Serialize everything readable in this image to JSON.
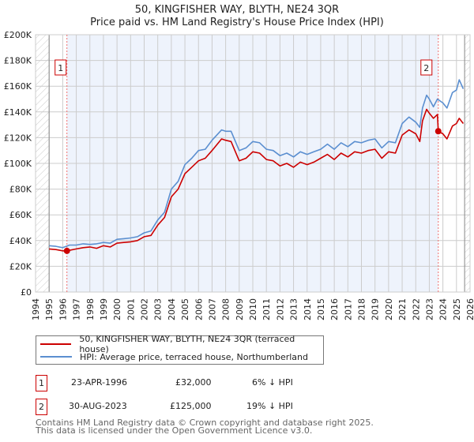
{
  "chart_data": {
    "type": "line",
    "title": "50, KINGFISHER WAY, BLYTH, NE24 3QR",
    "subtitle": "Price paid vs. HM Land Registry's House Price Index (HPI)",
    "xlabel": "",
    "ylabel": "",
    "xlim": [
      1994,
      2026
    ],
    "ylim": [
      0,
      200000
    ],
    "x_ticks": [
      "1994",
      "1995",
      "1996",
      "1997",
      "1998",
      "1999",
      "2000",
      "2001",
      "2002",
      "2003",
      "2004",
      "2005",
      "2006",
      "2007",
      "2008",
      "2009",
      "2010",
      "2011",
      "2012",
      "2013",
      "2014",
      "2015",
      "2016",
      "2017",
      "2018",
      "2019",
      "2020",
      "2021",
      "2022",
      "2023",
      "2024",
      "2025",
      "2026"
    ],
    "y_ticks": [
      {
        "v": 0,
        "label": "£0"
      },
      {
        "v": 20000,
        "label": "£20K"
      },
      {
        "v": 40000,
        "label": "£40K"
      },
      {
        "v": 60000,
        "label": "£60K"
      },
      {
        "v": 80000,
        "label": "£80K"
      },
      {
        "v": 100000,
        "label": "£100K"
      },
      {
        "v": 120000,
        "label": "£120K"
      },
      {
        "v": 140000,
        "label": "£140K"
      },
      {
        "v": 160000,
        "label": "£160K"
      },
      {
        "v": 180000,
        "label": "£180K"
      },
      {
        "v": 200000,
        "label": "£200K"
      }
    ],
    "grid": true,
    "data_range": [
      1995,
      2025.6
    ],
    "series": [
      {
        "name": "50, KINGFISHER WAY, BLYTH, NE24 3QR (terraced house)",
        "color": "#cc0000",
        "x": [
          1995,
          1995.5,
          1996,
          1996.3,
          1997,
          1997.5,
          1998,
          1998.5,
          1999,
          1999.5,
          2000,
          2000.5,
          2001,
          2001.5,
          2002,
          2002.5,
          2003,
          2003.5,
          2004,
          2004.5,
          2005,
          2005.5,
          2006,
          2006.5,
          2007,
          2007.7,
          2008,
          2008.4,
          2009,
          2009.5,
          2010,
          2010.5,
          2011,
          2011.5,
          2012,
          2012.5,
          2013,
          2013.5,
          2014,
          2014.5,
          2015,
          2015.5,
          2016,
          2016.5,
          2017,
          2017.5,
          2018,
          2018.5,
          2019,
          2019.5,
          2020,
          2020.5,
          2021,
          2021.5,
          2022,
          2022.3,
          2022.5,
          2022.8,
          2023,
          2023.3,
          2023.6,
          2023.66,
          2024,
          2024.3,
          2024.7,
          2025,
          2025.2,
          2025.5
        ],
        "y": [
          33500,
          33000,
          32000,
          32000,
          33500,
          34500,
          35000,
          34000,
          36000,
          35000,
          38000,
          38500,
          39000,
          40000,
          43000,
          44000,
          52000,
          58000,
          74000,
          80000,
          92000,
          97000,
          102000,
          104000,
          110000,
          119000,
          118000,
          117000,
          102000,
          104000,
          109000,
          108000,
          103000,
          102000,
          98000,
          100000,
          97000,
          101000,
          99000,
          101000,
          104000,
          107000,
          103000,
          108000,
          105000,
          109000,
          108000,
          110000,
          111000,
          104000,
          109000,
          108000,
          122000,
          126000,
          123000,
          117000,
          133000,
          142000,
          139000,
          135000,
          138000,
          125000,
          123000,
          119000,
          129000,
          131000,
          135000,
          131000
        ]
      },
      {
        "name": "HPI: Average price, terraced house, Northumberland",
        "color": "#5b8fd0",
        "x": [
          1995,
          1995.5,
          1996,
          1996.5,
          1997,
          1997.5,
          1998,
          1998.5,
          1999,
          1999.5,
          2000,
          2000.5,
          2001,
          2001.5,
          2002,
          2002.5,
          2003,
          2003.5,
          2004,
          2004.5,
          2005,
          2005.5,
          2006,
          2006.5,
          2007,
          2007.7,
          2008,
          2008.4,
          2009,
          2009.5,
          2010,
          2010.5,
          2011,
          2011.5,
          2012,
          2012.5,
          2013,
          2013.5,
          2014,
          2014.5,
          2015,
          2015.5,
          2016,
          2016.5,
          2017,
          2017.5,
          2018,
          2018.5,
          2019,
          2019.5,
          2020,
          2020.5,
          2021,
          2021.5,
          2022,
          2022.3,
          2022.5,
          2022.8,
          2023,
          2023.3,
          2023.6,
          2024,
          2024.3,
          2024.7,
          2025,
          2025.2,
          2025.5
        ],
        "y": [
          36000,
          35500,
          34500,
          36500,
          36500,
          37500,
          37000,
          37500,
          38500,
          38000,
          41000,
          41500,
          42000,
          43000,
          46000,
          47500,
          56000,
          62000,
          80000,
          86000,
          99000,
          104000,
          110000,
          111000,
          118000,
          126000,
          125000,
          125000,
          110000,
          112000,
          117000,
          116000,
          111000,
          110000,
          106000,
          108000,
          105000,
          109000,
          107000,
          109000,
          111000,
          115000,
          111000,
          116000,
          113000,
          117000,
          116000,
          118000,
          119000,
          112000,
          117000,
          116000,
          131000,
          136000,
          132000,
          128000,
          143000,
          153000,
          150000,
          144000,
          150000,
          147000,
          143000,
          155000,
          157000,
          165000,
          158000
        ]
      }
    ],
    "annotations": [
      {
        "label": "1",
        "x": 1996.31,
        "value": 32000
      },
      {
        "label": "2",
        "x": 2023.66,
        "value": 125000
      }
    ]
  },
  "legend": {
    "property": "50, KINGFISHER WAY, BLYTH, NE24 3QR (terraced house)",
    "hpi": "HPI: Average price, terraced house, Northumberland"
  },
  "sales": [
    {
      "num": "1",
      "date": "23-APR-1996",
      "price": "£32,000",
      "diff": "6% ↓ HPI"
    },
    {
      "num": "2",
      "date": "30-AUG-2023",
      "price": "£125,000",
      "diff": "19% ↓ HPI"
    }
  ],
  "footer": {
    "line1": "Contains HM Land Registry data © Crown copyright and database right 2025.",
    "line2": "This data is licensed under the Open Government Licence v3.0."
  },
  "colors": {
    "property": "#cc0000",
    "hpi": "#5b8fd0",
    "shade": "#eef3fc"
  }
}
